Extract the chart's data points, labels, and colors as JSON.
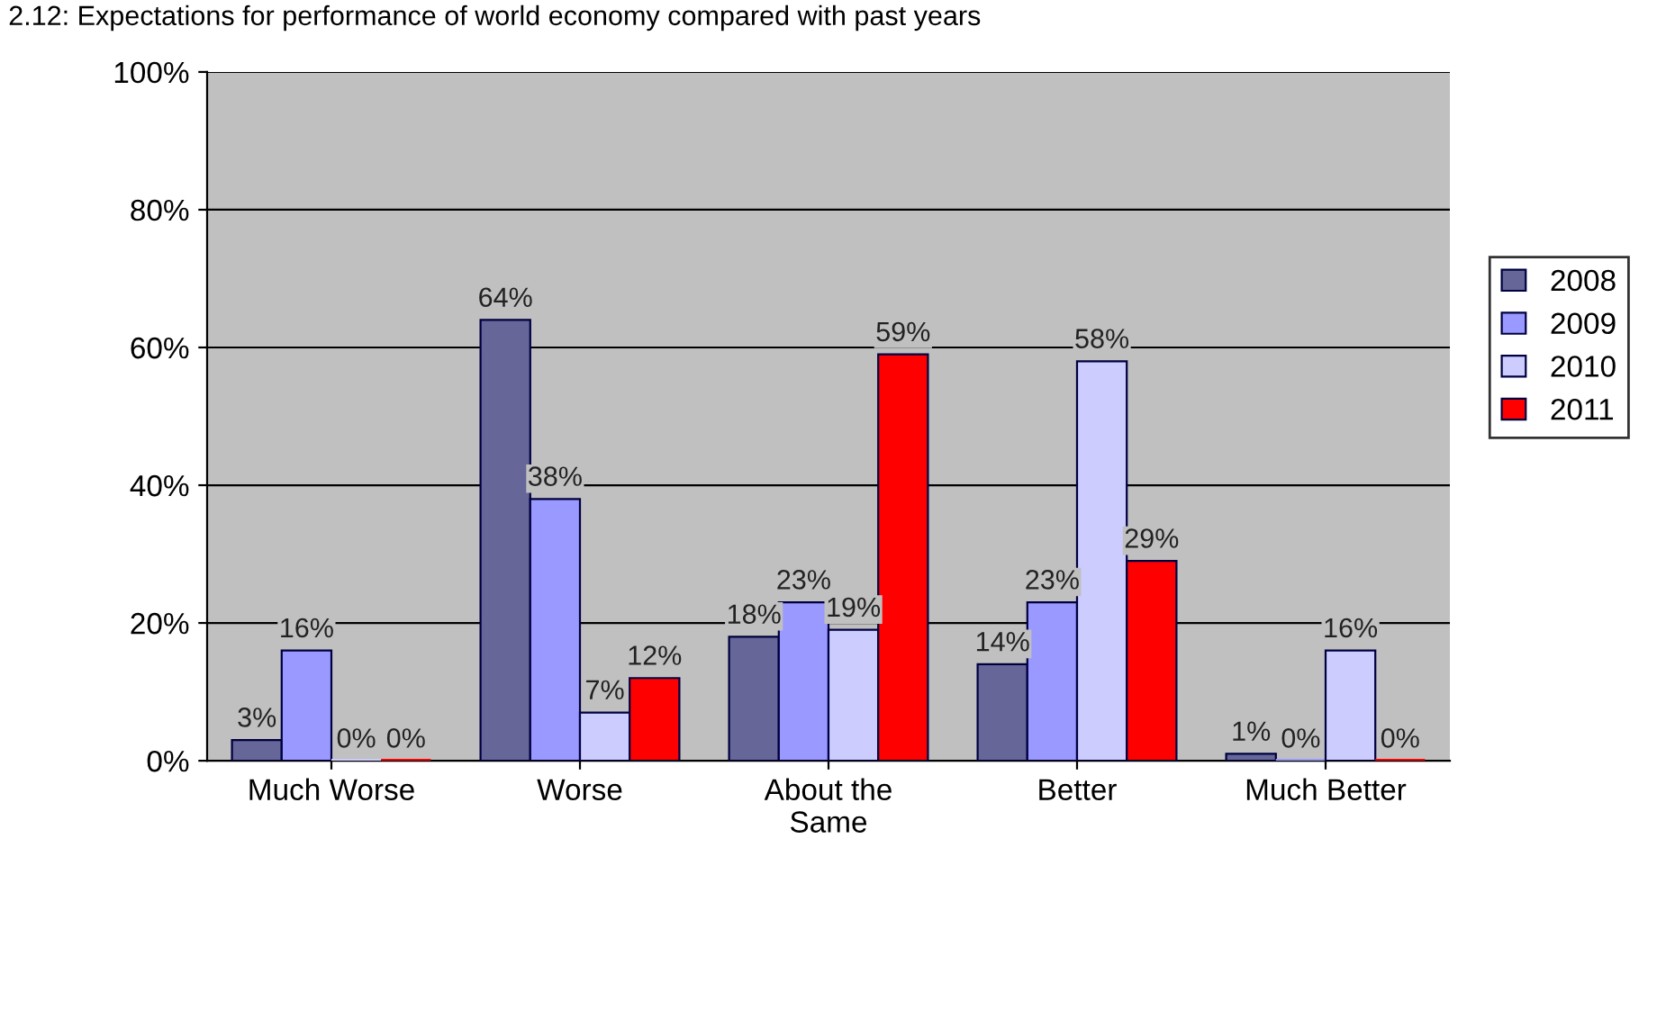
{
  "chart_data": {
    "type": "bar",
    "title": "2.12: Expectations for performance of world economy compared with past years",
    "categories": [
      "Much Worse",
      "Worse",
      "About the\nSame",
      "Better",
      "Much Better"
    ],
    "series": [
      {
        "name": "2008",
        "color": "#666699",
        "values": [
          3,
          64,
          18,
          14,
          1
        ],
        "value_labels": [
          "3%",
          "64%",
          "18%",
          "14%",
          "1%"
        ]
      },
      {
        "name": "2009",
        "color": "#9999ff",
        "values": [
          16,
          38,
          23,
          23,
          0
        ],
        "value_labels": [
          "16%",
          "38%",
          "23%",
          "23%",
          "0%"
        ]
      },
      {
        "name": "2010",
        "color": "#ccccff",
        "values": [
          0,
          7,
          19,
          58,
          16
        ],
        "value_labels": [
          "0%",
          "7%",
          "19%",
          "58%",
          "16%"
        ]
      },
      {
        "name": "2011",
        "color": "#ff0000",
        "values": [
          0,
          12,
          59,
          29,
          0
        ],
        "value_labels": [
          "0%",
          "12%",
          "59%",
          "29%",
          "0%"
        ]
      }
    ],
    "ylim": [
      0,
      100
    ],
    "yticks": [
      {
        "value": 0,
        "label": "0%"
      },
      {
        "value": 20,
        "label": "20%"
      },
      {
        "value": 40,
        "label": "40%"
      },
      {
        "value": 60,
        "label": "60%"
      },
      {
        "value": 80,
        "label": "80%"
      },
      {
        "value": 100,
        "label": "100%"
      }
    ],
    "grid": "y",
    "legend": "right"
  }
}
